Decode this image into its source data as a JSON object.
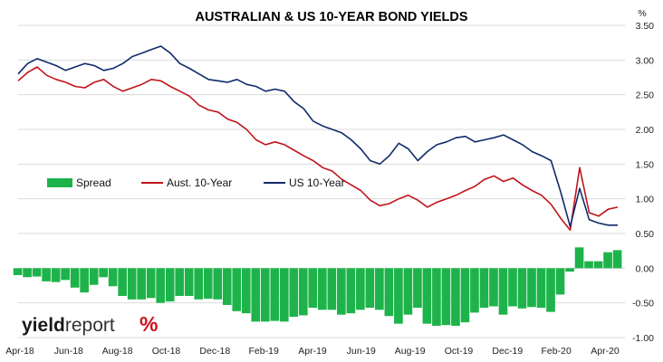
{
  "chart_data": {
    "type": "line",
    "title": "AUSTRALIAN & US 10-YEAR BOND YIELDS",
    "y_unit": "%",
    "ylim": [
      -1.0,
      3.5
    ],
    "yticks": [
      "3.50",
      "3.00",
      "2.50",
      "2.00",
      "1.50",
      "1.00",
      "0.50",
      "0.00",
      "-0.50",
      "-1.00"
    ],
    "ytick_values": [
      3.5,
      3.0,
      2.5,
      2.0,
      1.5,
      1.0,
      0.5,
      0.0,
      -0.5,
      -1.0
    ],
    "xticks": [
      "Apr-18",
      "Jun-18",
      "Aug-18",
      "Oct-18",
      "Dec-18",
      "Feb-19",
      "Apr-19",
      "Jun-19",
      "Aug-19",
      "Oct-19",
      "Dec-19",
      "Feb-20",
      "Apr-20"
    ],
    "grid": "horizontal",
    "legend_position": "middle-left",
    "colors": {
      "spread": "#1db34a",
      "aus": "#c0141a",
      "us": "#102a6a"
    },
    "series": [
      {
        "name": "Aust. 10-Year",
        "type": "line",
        "values": [
          2.7,
          2.82,
          2.9,
          2.78,
          2.72,
          2.68,
          2.62,
          2.6,
          2.68,
          2.72,
          2.62,
          2.55,
          2.6,
          2.65,
          2.72,
          2.7,
          2.62,
          2.55,
          2.48,
          2.35,
          2.28,
          2.25,
          2.15,
          2.1,
          2.0,
          1.85,
          1.78,
          1.82,
          1.78,
          1.7,
          1.62,
          1.55,
          1.45,
          1.4,
          1.28,
          1.2,
          1.12,
          0.98,
          0.9,
          0.93,
          1.0,
          1.05,
          0.98,
          0.88,
          0.95,
          1.0,
          1.05,
          1.12,
          1.18,
          1.28,
          1.33,
          1.25,
          1.3,
          1.2,
          1.12,
          1.05,
          0.92,
          0.72,
          0.55,
          1.45,
          0.8,
          0.75,
          0.85,
          0.88
        ]
      },
      {
        "name": "US 10-Year",
        "type": "line",
        "values": [
          2.8,
          2.95,
          3.02,
          2.97,
          2.92,
          2.85,
          2.9,
          2.95,
          2.92,
          2.85,
          2.88,
          2.95,
          3.05,
          3.1,
          3.15,
          3.2,
          3.1,
          2.95,
          2.88,
          2.8,
          2.72,
          2.7,
          2.68,
          2.72,
          2.65,
          2.62,
          2.55,
          2.58,
          2.55,
          2.4,
          2.3,
          2.12,
          2.05,
          2.0,
          1.95,
          1.85,
          1.72,
          1.55,
          1.5,
          1.62,
          1.8,
          1.72,
          1.55,
          1.68,
          1.78,
          1.82,
          1.88,
          1.9,
          1.82,
          1.85,
          1.88,
          1.92,
          1.85,
          1.78,
          1.68,
          1.62,
          1.55,
          1.1,
          0.6,
          1.15,
          0.7,
          0.65,
          0.62,
          0.62
        ]
      },
      {
        "name": "Spread",
        "type": "bar",
        "values": [
          -0.1,
          -0.13,
          -0.12,
          -0.19,
          -0.2,
          -0.17,
          -0.28,
          -0.35,
          -0.24,
          -0.13,
          -0.26,
          -0.4,
          -0.45,
          -0.45,
          -0.43,
          -0.5,
          -0.48,
          -0.4,
          -0.4,
          -0.45,
          -0.44,
          -0.45,
          -0.53,
          -0.62,
          -0.65,
          -0.77,
          -0.77,
          -0.76,
          -0.77,
          -0.7,
          -0.68,
          -0.57,
          -0.6,
          -0.6,
          -0.67,
          -0.65,
          -0.6,
          -0.57,
          -0.6,
          -0.69,
          -0.8,
          -0.67,
          -0.57,
          -0.8,
          -0.83,
          -0.82,
          -0.83,
          -0.78,
          -0.64,
          -0.57,
          -0.55,
          -0.67,
          -0.55,
          -0.58,
          -0.56,
          -0.57,
          -0.63,
          -0.38,
          -0.05,
          0.3,
          0.1,
          0.1,
          0.23,
          0.26
        ]
      }
    ]
  },
  "legend": {
    "spread": "Spread",
    "aus": "Aust. 10-Year",
    "us": "US 10-Year"
  },
  "logo": {
    "part1": "yield",
    "part2": "report",
    "symbol": "%"
  }
}
